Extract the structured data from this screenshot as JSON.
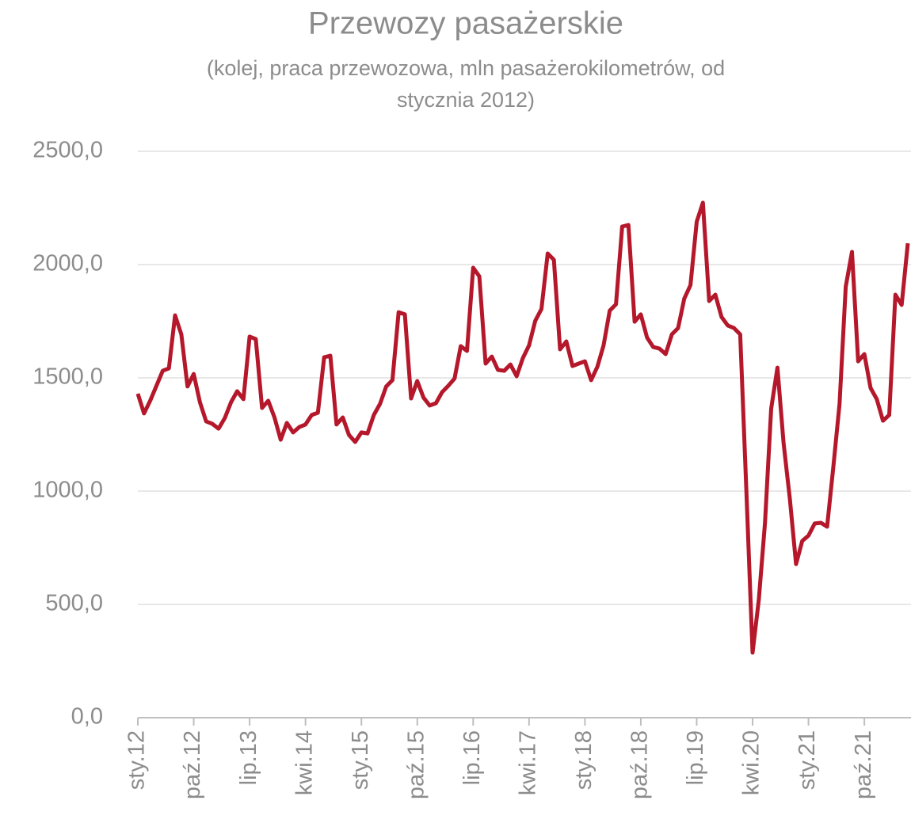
{
  "chart_data": {
    "type": "line",
    "title": "Przewozy pasażerskie",
    "subtitle": [
      "(kolej, praca przewozowa, mln pasażerokilometrów, od",
      "stycznia 2012)"
    ],
    "categories": [
      "sty.12",
      null,
      null,
      null,
      null,
      null,
      null,
      null,
      null,
      "paź.12",
      null,
      null,
      null,
      null,
      null,
      null,
      null,
      null,
      "lip.13",
      null,
      null,
      null,
      null,
      null,
      null,
      null,
      null,
      "kwi.14",
      null,
      null,
      null,
      null,
      null,
      null,
      null,
      null,
      "sty.15",
      null,
      null,
      null,
      null,
      null,
      null,
      null,
      null,
      "paź.15",
      null,
      null,
      null,
      null,
      null,
      null,
      null,
      null,
      "lip.16",
      null,
      null,
      null,
      null,
      null,
      null,
      null,
      null,
      "kwi.17",
      null,
      null,
      null,
      null,
      null,
      null,
      null,
      null,
      "sty.18",
      null,
      null,
      null,
      null,
      null,
      null,
      null,
      null,
      "paź.18",
      null,
      null,
      null,
      null,
      null,
      null,
      null,
      null,
      "lip.19",
      null,
      null,
      null,
      null,
      null,
      null,
      null,
      null,
      "kwi.20",
      null,
      null,
      null,
      null,
      null,
      null,
      null,
      null,
      "sty.21",
      null,
      null,
      null,
      null,
      null,
      null,
      null,
      null,
      "paź.21",
      null,
      null,
      null,
      null,
      null,
      null,
      null
    ],
    "series": [
      {
        "name": "Przewozy pasażerskie",
        "color": "#b5172b",
        "values": [
          1430,
          1343,
          1400,
          1465,
          1531,
          1542,
          1776,
          1692,
          1462,
          1517,
          1392,
          1308,
          1297,
          1276,
          1322,
          1392,
          1441,
          1406,
          1682,
          1671,
          1367,
          1399,
          1325,
          1227,
          1301,
          1259,
          1283,
          1294,
          1336,
          1346,
          1591,
          1598,
          1294,
          1325,
          1248,
          1217,
          1259,
          1255,
          1336,
          1385,
          1462,
          1490,
          1790,
          1780,
          1409,
          1486,
          1413,
          1378,
          1388,
          1437,
          1465,
          1497,
          1640,
          1619,
          1986,
          1948,
          1563,
          1594,
          1535,
          1531,
          1559,
          1507,
          1587,
          1643,
          1752,
          1804,
          2049,
          2021,
          1626,
          1661,
          1552,
          1563,
          1573,
          1490,
          1549,
          1643,
          1797,
          1825,
          2168,
          2175,
          1748,
          1780,
          1678,
          1636,
          1629,
          1605,
          1692,
          1720,
          1850,
          1909,
          2189,
          2273,
          1839,
          1867,
          1769,
          1731,
          1720,
          1692,
          1000,
          287,
          521,
          860,
          1364,
          1545,
          1210,
          965,
          678,
          780,
          804,
          857,
          860,
          843,
          1105,
          1385,
          1902,
          2056,
          1573,
          1605,
          1455,
          1406,
          1311,
          1336,
          1867,
          1822,
          2094
        ]
      }
    ],
    "ylim": [
      0,
      2500
    ],
    "yticks": [
      {
        "value": 0,
        "label": "0,0"
      },
      {
        "value": 500,
        "label": "500,0"
      },
      {
        "value": 1000,
        "label": "1000,0"
      },
      {
        "value": 1500,
        "label": "1500,0"
      },
      {
        "value": 2000,
        "label": "2000,0"
      },
      {
        "value": 2500,
        "label": "2500,0"
      }
    ],
    "grid": true
  }
}
